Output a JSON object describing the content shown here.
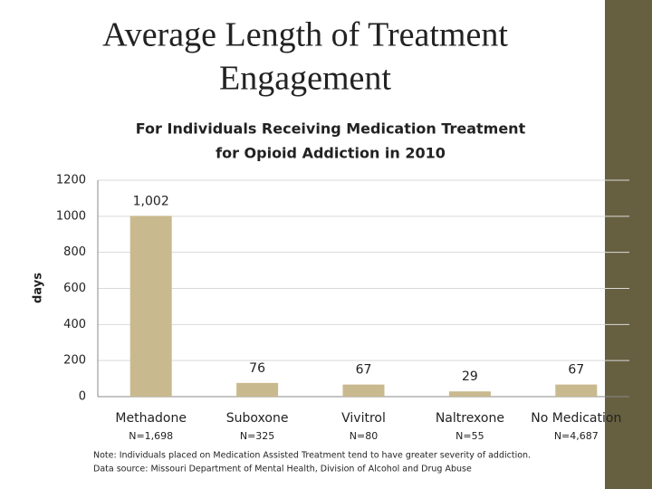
{
  "chart_data": {
    "type": "bar",
    "title_lines": [
      "Average Length of Treatment",
      "Engagement"
    ],
    "subtitle_lines": [
      "For Individuals Receiving Medication Treatment",
      "for Opioid Addiction in 2010"
    ],
    "y_label": "days",
    "categories": [
      "Methadone",
      "Suboxone",
      "Vivitrol",
      "Naltrexone",
      "No Medication"
    ],
    "sample_sizes": [
      "N=1,698",
      "N=325",
      "N=80",
      "N=55",
      "N=4,687"
    ],
    "values": [
      1002,
      76,
      67,
      29,
      67
    ],
    "value_labels": [
      "1,002",
      "76",
      "67",
      "29",
      "67"
    ],
    "color": "#c9b98e",
    "ylim": [
      0,
      1200
    ],
    "yticks": [
      0,
      200,
      400,
      600,
      800,
      1000,
      1200
    ],
    "grid": true,
    "notes": [
      "Note:  Individuals placed on Medication Assisted Treatment tend to have greater severity of addiction.",
      "Data source:  Missouri Department of Mental Health, Division of Alcohol and Drug Abuse"
    ]
  }
}
